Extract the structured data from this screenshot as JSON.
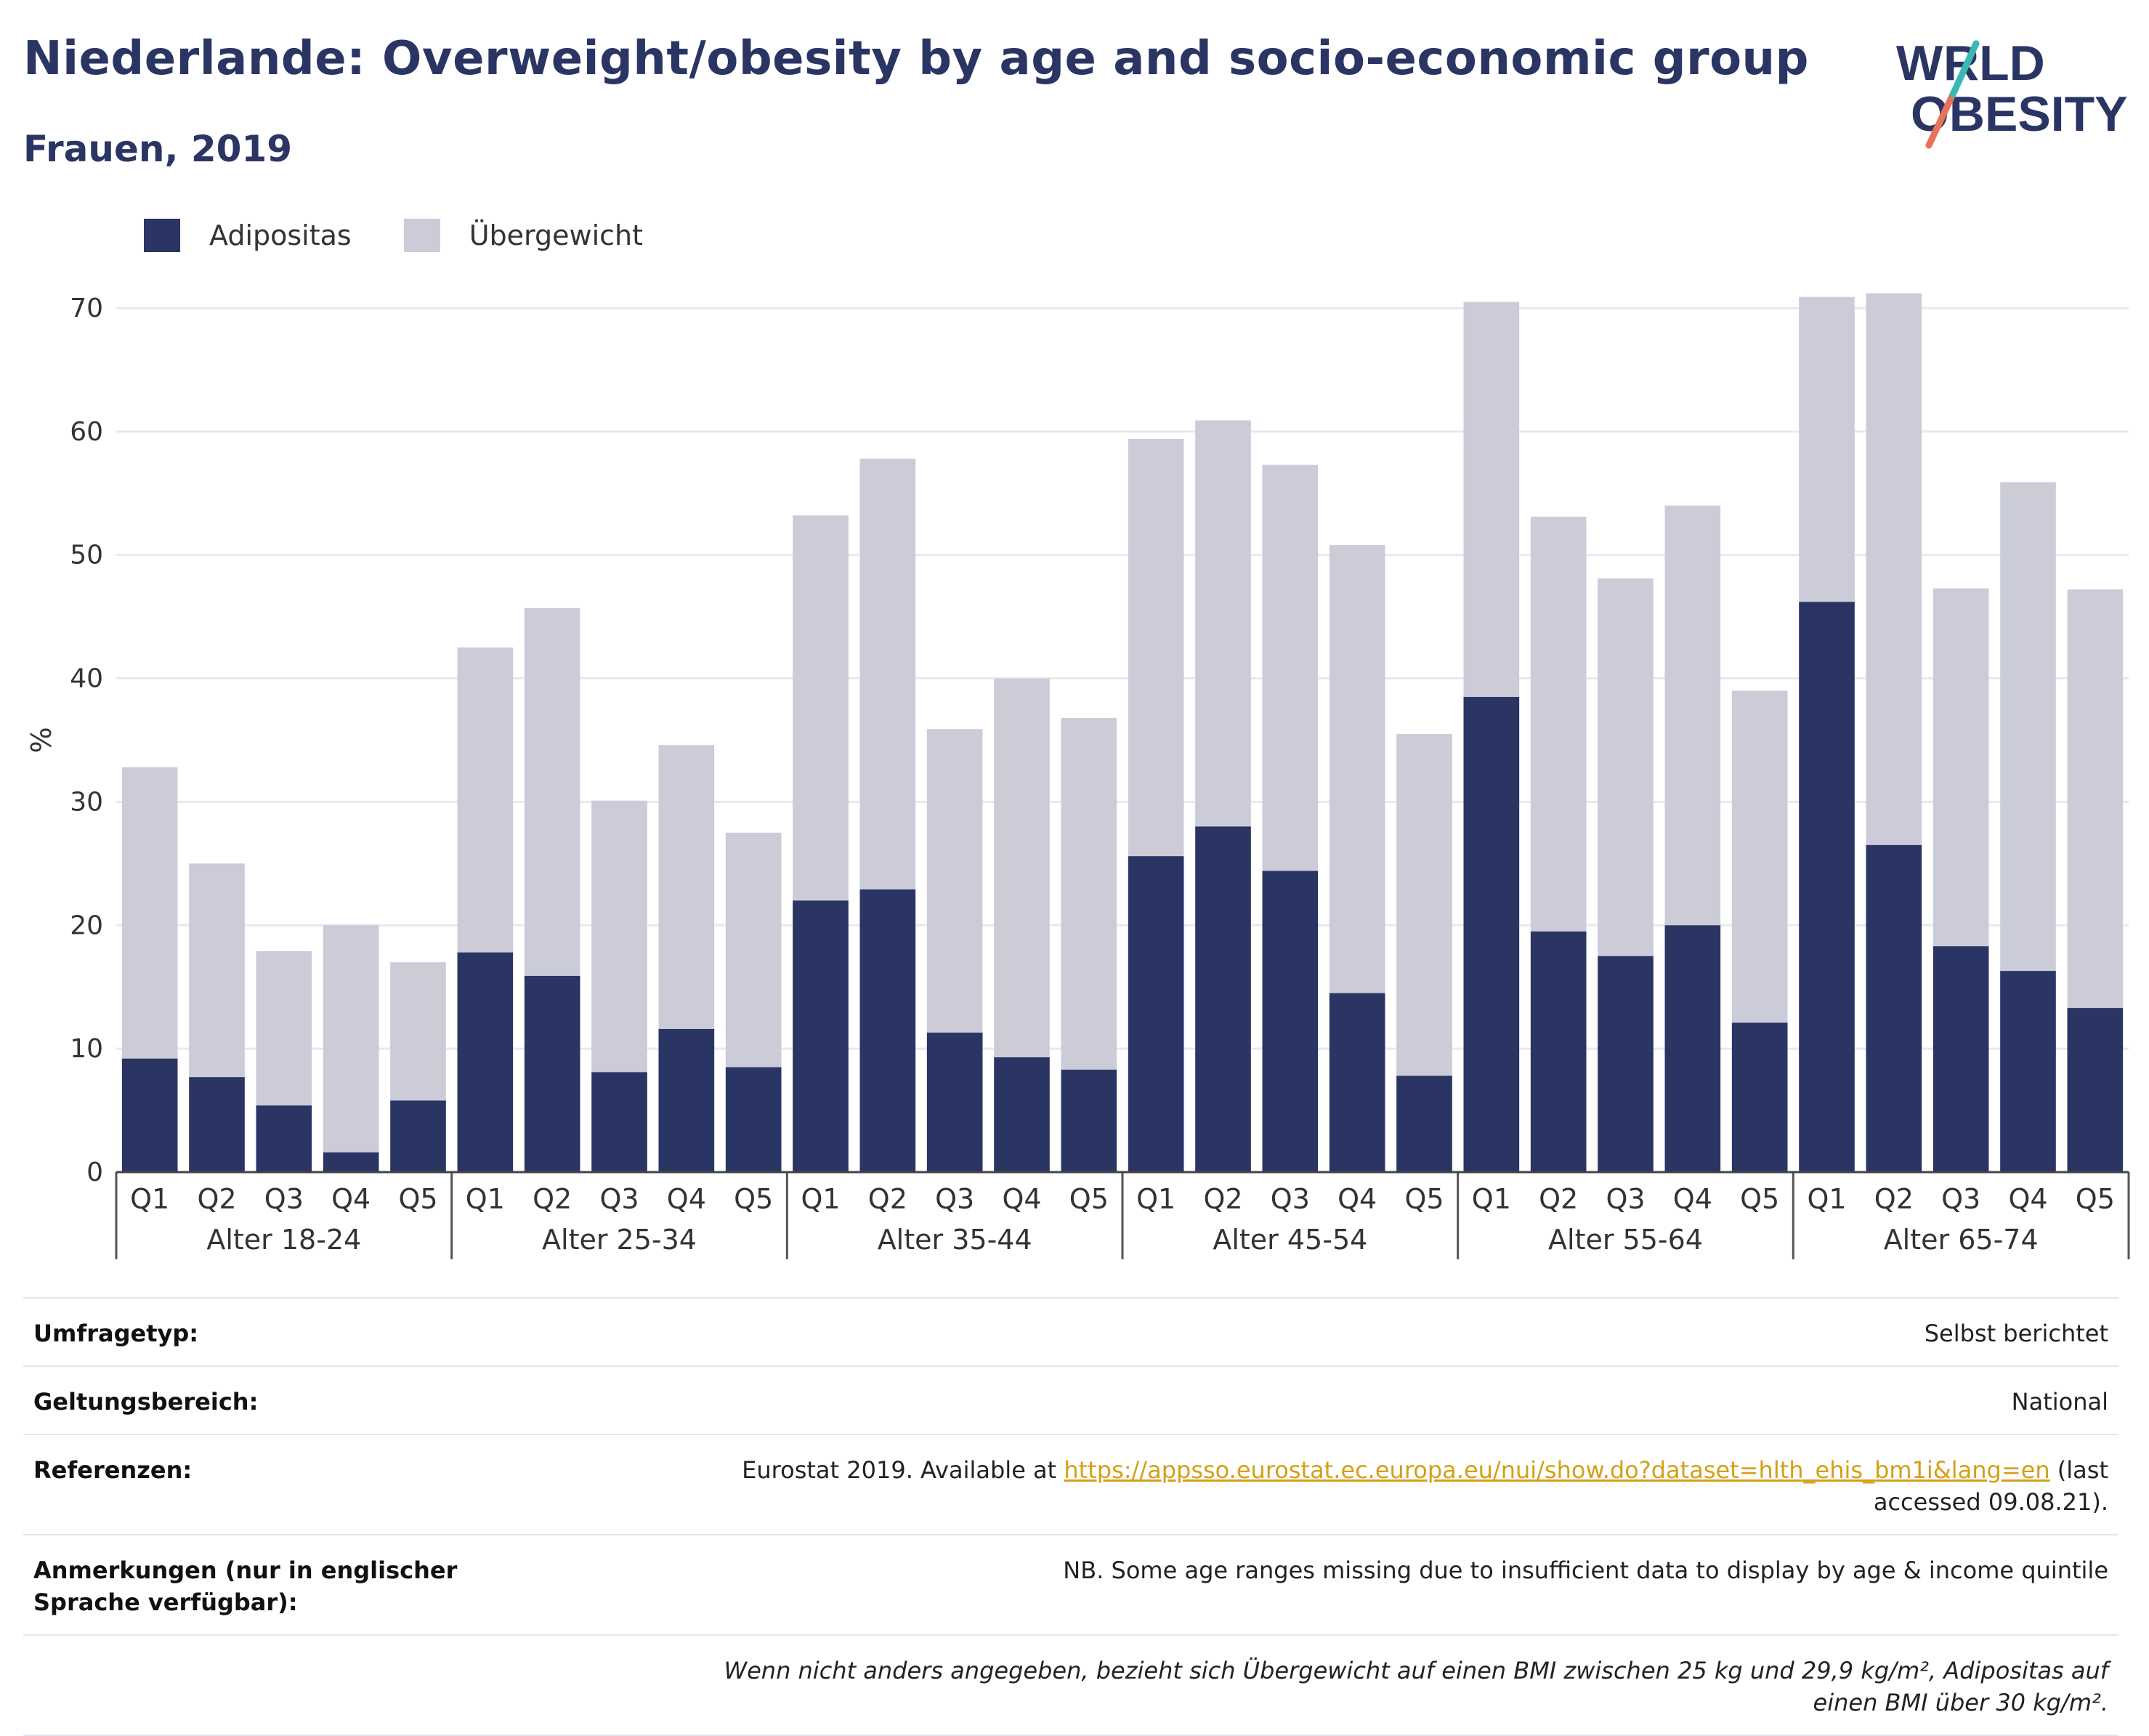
{
  "title": "Niederlande: Overweight/obesity by age and socio-economic group",
  "subtitle": "Frauen, 2019",
  "colors": {
    "obesity": "#2a3564",
    "overweight": "#cbccd8",
    "title": "#2a3564",
    "link": "#d4a017"
  },
  "chart_data": {
    "type": "bar",
    "stacked": true,
    "ylabel": "%",
    "ylim": [
      0,
      72
    ],
    "yticks": [
      0,
      10,
      20,
      30,
      40,
      50,
      60,
      70
    ],
    "grid": true,
    "legend_position": "top-left",
    "groups": [
      {
        "label": "Alter 18-24",
        "categories": [
          "Q1",
          "Q2",
          "Q3",
          "Q4",
          "Q5"
        ],
        "obesity": [
          9.2,
          7.7,
          5.4,
          1.6,
          5.8
        ],
        "total": [
          32.8,
          25.0,
          17.9,
          20.0,
          17.0
        ]
      },
      {
        "label": "Alter 25-34",
        "categories": [
          "Q1",
          "Q2",
          "Q3",
          "Q4",
          "Q5"
        ],
        "obesity": [
          17.8,
          15.9,
          8.1,
          11.6,
          8.5
        ],
        "total": [
          42.5,
          45.7,
          30.1,
          34.6,
          27.5
        ]
      },
      {
        "label": "Alter 35-44",
        "categories": [
          "Q1",
          "Q2",
          "Q3",
          "Q4",
          "Q5"
        ],
        "obesity": [
          22.0,
          22.9,
          11.3,
          9.3,
          8.3
        ],
        "total": [
          53.2,
          57.8,
          35.9,
          40.0,
          36.8
        ]
      },
      {
        "label": "Alter 45-54",
        "categories": [
          "Q1",
          "Q2",
          "Q3",
          "Q4",
          "Q5"
        ],
        "obesity": [
          25.6,
          28.0,
          24.4,
          14.5,
          7.8
        ],
        "total": [
          59.4,
          60.9,
          57.3,
          50.8,
          35.5
        ]
      },
      {
        "label": "Alter 55-64",
        "categories": [
          "Q1",
          "Q2",
          "Q3",
          "Q4",
          "Q5"
        ],
        "obesity": [
          38.5,
          19.5,
          17.5,
          20.0,
          12.1
        ],
        "total": [
          70.5,
          53.1,
          48.1,
          54.0,
          39.0
        ]
      },
      {
        "label": "Alter 65-74",
        "categories": [
          "Q1",
          "Q2",
          "Q3",
          "Q4",
          "Q5"
        ],
        "obesity": [
          46.2,
          26.5,
          18.3,
          16.3,
          13.3
        ],
        "total": [
          70.9,
          71.2,
          47.3,
          55.9,
          47.2
        ]
      }
    ],
    "series": [
      {
        "name": "Adipositas",
        "color": "#2a3564"
      },
      {
        "name": "Übergewicht",
        "color": "#cbccd8"
      }
    ]
  },
  "info": {
    "survey_type": {
      "label": "Umfragetyp:",
      "value": "Selbst berichtet"
    },
    "coverage": {
      "label": "Geltungsbereich:",
      "value": "National"
    },
    "references": {
      "label": "Referenzen:",
      "prefix": "Eurostat 2019. Available at",
      "link": "https://appsso.eurostat.ec.europa.eu/nui/show.do?dataset=hlth_ehis_bm1i&lang=en",
      "suffix": "(last accessed 09.08.21)."
    },
    "notes": {
      "label": "Anmerkungen (nur in englischer Sprache verfügbar):",
      "value": "NB. Some age ranges missing due to insufficient data to display by age & income quintile"
    },
    "definition": "Wenn nicht anders angegeben, bezieht sich Übergewicht auf einen BMI zwischen 25 kg und 29,9 kg/m², Adipositas auf einen BMI über 30 kg/m²."
  }
}
